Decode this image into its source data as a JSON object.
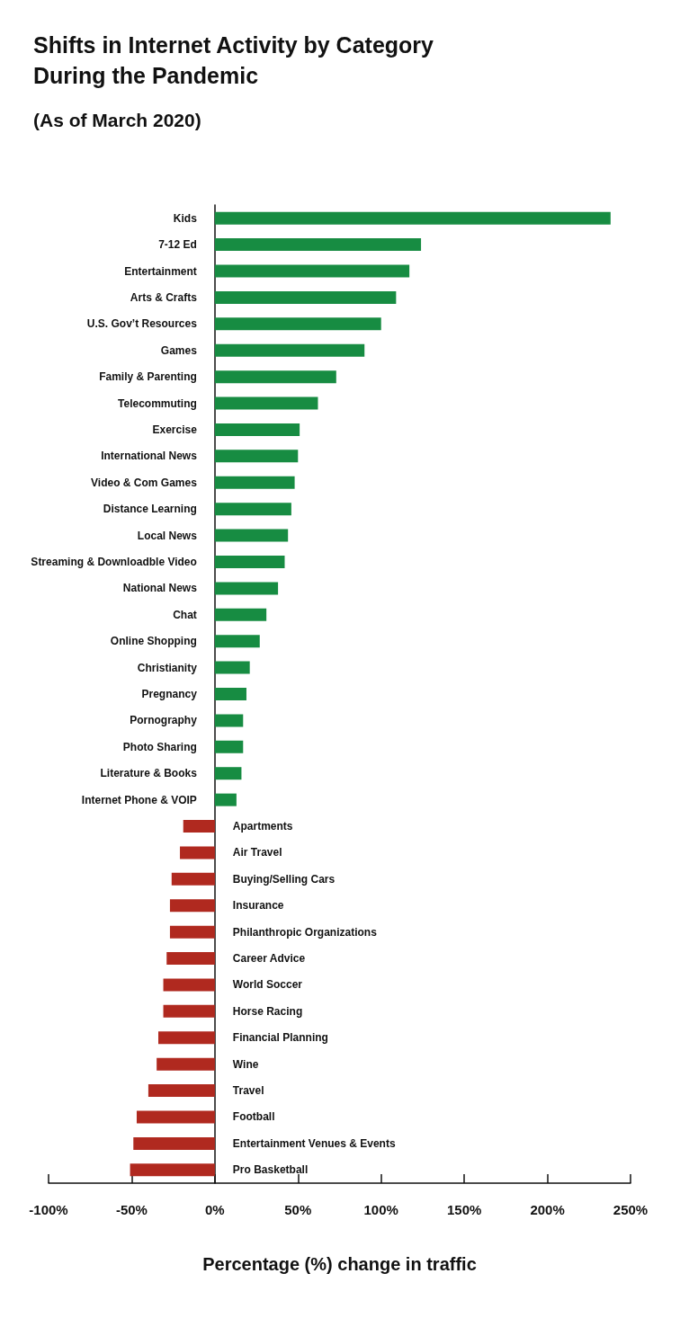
{
  "chart_data": {
    "type": "bar",
    "orientation": "horizontal",
    "title": "Shifts in Internet Activity by Category During the Pandemic",
    "subtitle": "(As of March 2020)",
    "xlabel": "Percentage (%) change in traffic",
    "categories": [
      "Kids",
      "7-12 Ed",
      "Entertainment",
      "Arts & Crafts",
      "U.S. Gov’t Resources",
      "Games",
      "Family & Parenting",
      "Telecommuting",
      "Exercise",
      "International News",
      "Video & Com Games",
      "Distance Learning",
      "Local News",
      "Streaming & Downloadble Video",
      "National News",
      "Chat",
      "Online Shopping",
      "Christianity",
      "Pregnancy",
      "Pornography",
      "Photo Sharing",
      "Literature & Books",
      "Internet Phone & VOIP",
      "Apartments",
      "Air Travel",
      "Buying/Selling Cars",
      "Insurance",
      "Philanthropic Organizations",
      "Career Advice",
      "World Soccer",
      "Horse Racing",
      "Financial Planning",
      "Wine",
      "Travel",
      "Football",
      "Entertainment Venues & Events",
      "Pro Basketball"
    ],
    "values": [
      238,
      124,
      117,
      109,
      100,
      90,
      73,
      62,
      51,
      50,
      48,
      46,
      44,
      42,
      38,
      31,
      27,
      21,
      19,
      17,
      17,
      16,
      13,
      -19,
      -21,
      -26,
      -27,
      -27,
      -29,
      -31,
      -31,
      -34,
      -35,
      -40,
      -47,
      -49,
      -51
    ],
    "colors": [
      "#178c42",
      "#178c42",
      "#178c42",
      "#178c42",
      "#178c42",
      "#178c42",
      "#178c42",
      "#178c42",
      "#178c42",
      "#178c42",
      "#178c42",
      "#178c42",
      "#178c42",
      "#178c42",
      "#178c42",
      "#178c42",
      "#178c42",
      "#178c42",
      "#178c42",
      "#178c42",
      "#178c42",
      "#178c42",
      "#178c42",
      "#b0291f",
      "#b0291f",
      "#b0291f",
      "#b0291f",
      "#b0291f",
      "#b0291f",
      "#b0291f",
      "#b0291f",
      "#b0291f",
      "#b0291f",
      "#b0291f",
      "#b0291f",
      "#b0291f",
      "#b0291f"
    ],
    "xlim": [
      -100,
      250
    ],
    "xticks": [
      {
        "value": -100,
        "label": "-100%"
      },
      {
        "value": -50,
        "label": "-50%"
      },
      {
        "value": 0,
        "label": "0%"
      },
      {
        "value": 50,
        "label": "50%"
      },
      {
        "value": 100,
        "label": "100%"
      },
      {
        "value": 150,
        "label": "150%"
      },
      {
        "value": 200,
        "label": "200%"
      },
      {
        "value": 250,
        "label": "250%"
      }
    ],
    "grid": false
  }
}
